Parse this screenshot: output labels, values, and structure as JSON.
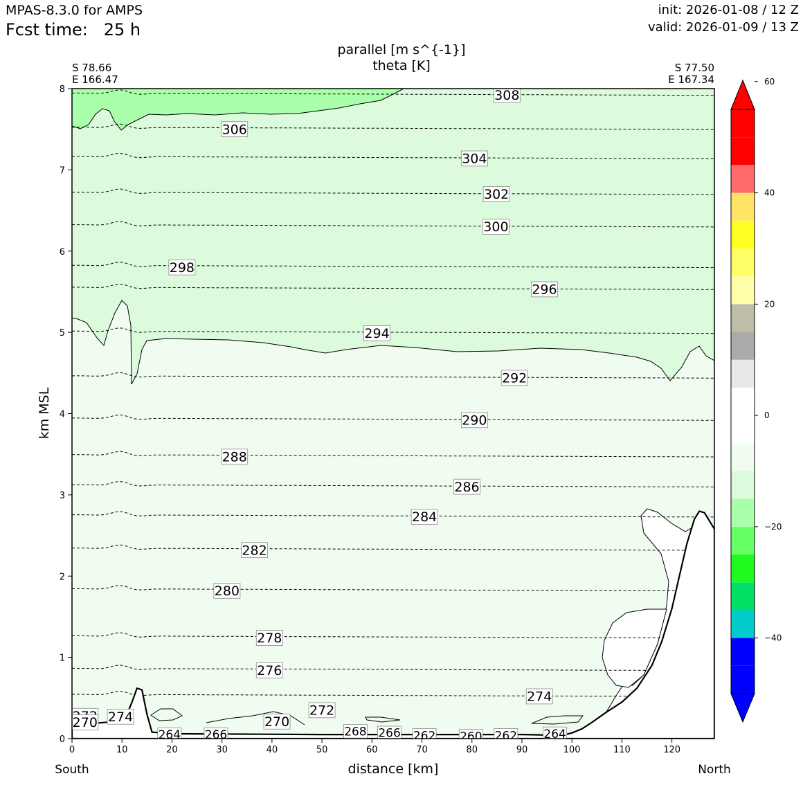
{
  "header": {
    "model": "MPAS-8.3.0 for AMPS",
    "fcst_label": "Fcst time:",
    "fcst_hours": "25 h",
    "init": "init: 2026-01-08 / 12 Z",
    "valid": "valid: 2026-01-09 / 13 Z"
  },
  "chart_data": {
    "type": "cross-section contour",
    "title_line1": "parallel [m s^{-1}]",
    "title_line2": "theta [K]",
    "xlabel": "distance [km]",
    "ylabel": "km MSL",
    "xlim": [
      0,
      128.5
    ],
    "ylim": [
      0,
      8
    ],
    "x_ticks": [
      "0",
      "10",
      "20",
      "30",
      "40",
      "50",
      "60",
      "70",
      "80",
      "90",
      "100",
      "110",
      "120"
    ],
    "y_ticks": [
      "0",
      "1",
      "2",
      "3",
      "4",
      "5",
      "6",
      "7",
      "8"
    ],
    "left_endpoint": {
      "lat": "S 78.66",
      "lon": "E 166.47",
      "direction": "South"
    },
    "right_endpoint": {
      "lat": "S 77.50",
      "lon": "E 167.34",
      "direction": "North"
    },
    "shading_colors": {
      "weak_band_-10_0": "#f0fcf0",
      "band_-15_-10": "#dcfadc",
      "band_-20_-15": "#aaffaa"
    },
    "terrain_km": [
      [
        0,
        0.17
      ],
      [
        5,
        0.19
      ],
      [
        10,
        0.22
      ],
      [
        11,
        0.3
      ],
      [
        12,
        0.45
      ],
      [
        13,
        0.62
      ],
      [
        14,
        0.6
      ],
      [
        15,
        0.3
      ],
      [
        16,
        0.08
      ],
      [
        20,
        0.06
      ],
      [
        50,
        0.05
      ],
      [
        90,
        0.05
      ],
      [
        98,
        0.04
      ],
      [
        100,
        0.07
      ],
      [
        102,
        0.12
      ],
      [
        104,
        0.2
      ],
      [
        107,
        0.33
      ],
      [
        110,
        0.45
      ],
      [
        113,
        0.62
      ],
      [
        116,
        0.9
      ],
      [
        118,
        1.2
      ],
      [
        120,
        1.6
      ],
      [
        121.5,
        2.0
      ],
      [
        123,
        2.4
      ],
      [
        124.5,
        2.7
      ],
      [
        125.5,
        2.8
      ],
      [
        126.5,
        2.78
      ],
      [
        127.5,
        2.68
      ],
      [
        128.5,
        2.58
      ]
    ],
    "isotherm_labels": [
      {
        "value": "308",
        "x": 87.0,
        "y": 7.92
      },
      {
        "value": "306",
        "x": 32.5,
        "y": 7.5
      },
      {
        "value": "304",
        "x": 80.5,
        "y": 7.14
      },
      {
        "value": "302",
        "x": 84.9,
        "y": 6.7
      },
      {
        "value": "300",
        "x": 84.8,
        "y": 6.3
      },
      {
        "value": "298",
        "x": 22.0,
        "y": 5.8
      },
      {
        "value": "296",
        "x": 94.5,
        "y": 5.53
      },
      {
        "value": "294",
        "x": 61.0,
        "y": 4.99
      },
      {
        "value": "292",
        "x": 88.5,
        "y": 4.44
      },
      {
        "value": "290",
        "x": 80.5,
        "y": 3.92
      },
      {
        "value": "288",
        "x": 32.5,
        "y": 3.47
      },
      {
        "value": "286",
        "x": 79.0,
        "y": 3.1
      },
      {
        "value": "284",
        "x": 70.5,
        "y": 2.73
      },
      {
        "value": "282",
        "x": 36.5,
        "y": 2.32
      },
      {
        "value": "280",
        "x": 31.0,
        "y": 1.82
      },
      {
        "value": "278",
        "x": 39.5,
        "y": 1.24
      },
      {
        "value": "276",
        "x": 39.5,
        "y": 0.84
      },
      {
        "value": "274",
        "x": 93.5,
        "y": 0.52
      },
      {
        "value": "274",
        "x": 9.7,
        "y": 0.27
      },
      {
        "value": "272",
        "x": 50.0,
        "y": 0.35
      },
      {
        "value": "272",
        "x": 2.6,
        "y": 0.28
      },
      {
        "value": "270",
        "x": 41.0,
        "y": 0.21
      },
      {
        "value": "270",
        "x": 2.6,
        "y": 0.2
      },
      {
        "value": "268",
        "x": 56.7,
        "y": 0.09
      },
      {
        "value": "266",
        "x": 63.5,
        "y": 0.07
      },
      {
        "value": "266",
        "x": 28.8,
        "y": 0.05
      },
      {
        "value": "264",
        "x": 19.5,
        "y": 0.05
      },
      {
        "value": "264",
        "x": 96.6,
        "y": 0.06
      },
      {
        "value": "262",
        "x": 70.5,
        "y": 0.04
      },
      {
        "value": "262",
        "x": 86.8,
        "y": 0.04
      },
      {
        "value": "260",
        "x": 79.8,
        "y": 0.03
      }
    ],
    "colorbar": {
      "tick_labels": [
        "60",
        "40",
        "20",
        "0",
        "−20",
        "−40"
      ],
      "levels": [
        60,
        40,
        20,
        0,
        -20,
        -40
      ],
      "range": [
        -50,
        55
      ],
      "bands": [
        {
          "lo": -50,
          "hi": -45,
          "color": "#0000ff"
        },
        {
          "lo": -45,
          "hi": -40,
          "color": "#0000ff"
        },
        {
          "lo": -40,
          "hi": -35,
          "color": "#00cccc"
        },
        {
          "lo": -35,
          "hi": -30,
          "color": "#00e065"
        },
        {
          "lo": -30,
          "hi": -25,
          "color": "#1efa1e"
        },
        {
          "lo": -25,
          "hi": -20,
          "color": "#66ff66"
        },
        {
          "lo": -20,
          "hi": -15,
          "color": "#aaffaa"
        },
        {
          "lo": -15,
          "hi": -10,
          "color": "#dcfadc"
        },
        {
          "lo": -10,
          "hi": -5,
          "color": "#f0fcf0"
        },
        {
          "lo": -5,
          "hi": 0,
          "color": "#ffffff"
        },
        {
          "lo": 0,
          "hi": 5,
          "color": "#ffffff"
        },
        {
          "lo": 5,
          "hi": 10,
          "color": "#e8e8e8"
        },
        {
          "lo": 10,
          "hi": 15,
          "color": "#aaaaaa"
        },
        {
          "lo": 15,
          "hi": 20,
          "color": "#bebea8"
        },
        {
          "lo": 20,
          "hi": 25,
          "color": "#ffffaa"
        },
        {
          "lo": 25,
          "hi": 30,
          "color": "#ffff66"
        },
        {
          "lo": 30,
          "hi": 35,
          "color": "#ffff22"
        },
        {
          "lo": 35,
          "hi": 40,
          "color": "#ffe466"
        },
        {
          "lo": 40,
          "hi": 45,
          "color": "#ff6b6b"
        },
        {
          "lo": 45,
          "hi": 50,
          "color": "#ff0000"
        },
        {
          "lo": 50,
          "hi": 55,
          "color": "#ff0000"
        }
      ],
      "under_color": "#0000ff",
      "over_color": "#ff0000"
    }
  }
}
